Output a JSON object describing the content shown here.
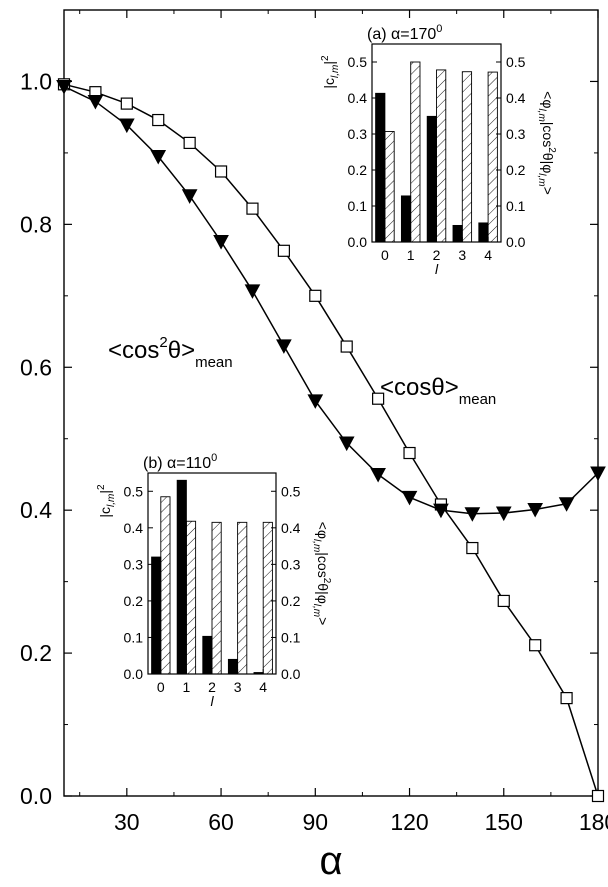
{
  "chart_data": [
    {
      "id": "main",
      "type": "line",
      "xlabel": "α",
      "ylabel": "",
      "xlim": [
        10,
        180
      ],
      "ylim": [
        0.0,
        1.1
      ],
      "x_ticks": [
        30,
        60,
        90,
        120,
        150,
        180
      ],
      "y_ticks": [
        0.0,
        0.2,
        0.4,
        0.6,
        0.8,
        1.0
      ],
      "x_tick_labels": [
        "30",
        "60",
        "90",
        "120",
        "150",
        "180"
      ],
      "y_tick_labels": [
        "0.0",
        "0.2",
        "0.4",
        "0.6",
        "0.8",
        "1.0"
      ],
      "grid": false,
      "annotations": [
        {
          "id": "cos2",
          "base": "<cos",
          "sup": "2",
          "after": "θ>",
          "sub": "mean"
        },
        {
          "id": "cos1",
          "base": "<cosθ>",
          "sup": "",
          "after": "",
          "sub": "mean"
        }
      ],
      "series": [
        {
          "id": "cos",
          "marker": "open-square",
          "x": [
            10,
            20,
            30,
            40,
            50,
            60,
            70,
            80,
            90,
            100,
            110,
            120,
            130,
            140,
            150,
            160,
            170,
            180
          ],
          "y": [
            0.996,
            0.985,
            0.969,
            0.946,
            0.914,
            0.874,
            0.822,
            0.763,
            0.7,
            0.629,
            0.556,
            0.48,
            0.408,
            0.347,
            0.273,
            0.211,
            0.137,
            0.0
          ]
        },
        {
          "id": "cos2",
          "marker": "filled-triangle-down",
          "x": [
            10,
            20,
            30,
            40,
            50,
            60,
            70,
            80,
            90,
            100,
            110,
            120,
            130,
            140,
            150,
            160,
            170,
            180
          ],
          "y": [
            0.993,
            0.972,
            0.939,
            0.895,
            0.84,
            0.776,
            0.707,
            0.63,
            0.553,
            0.494,
            0.45,
            0.418,
            0.4,
            0.395,
            0.396,
            0.401,
            0.409,
            0.452
          ]
        }
      ]
    },
    {
      "id": "inset-a",
      "type": "bar",
      "title": {
        "prefix": "(a) α=170",
        "sup": "0"
      },
      "categories": [
        "0",
        "1",
        "2",
        "3",
        "4"
      ],
      "xlabel": "l",
      "ylabel": {
        "base": "|c",
        "sub": "l,m",
        "close": "|",
        "sup": "2"
      },
      "ylabel_right": "<φ_{l,m}|cos^{2}θ|φ_{l,m}>",
      "ylim": [
        0.0,
        0.55
      ],
      "y_ticks": [
        0.0,
        0.1,
        0.2,
        0.3,
        0.4,
        0.5
      ],
      "y_tick_labels": [
        "0.0",
        "0.1",
        "0.2",
        "0.3",
        "0.4",
        "0.5"
      ],
      "series": [
        {
          "id": "c2",
          "fill": "solid",
          "values": [
            0.413,
            0.128,
            0.349,
            0.046,
            0.053
          ]
        },
        {
          "id": "expect",
          "fill": "hatched",
          "values": [
            0.307,
            0.5,
            0.478,
            0.473,
            0.472
          ]
        }
      ]
    },
    {
      "id": "inset-b",
      "type": "bar",
      "title": {
        "prefix": "(b) α=110",
        "sup": "0"
      },
      "categories": [
        "0",
        "1",
        "2",
        "3",
        "4"
      ],
      "xlabel": "l",
      "ylabel": {
        "base": "|c",
        "sub": "l,m",
        "close": "|",
        "sup": "2"
      },
      "ylabel_right": "<φ_{l,m}|cos^{2}θ|φ_{l,m}>",
      "ylim": [
        0.0,
        0.55
      ],
      "y_ticks": [
        0.0,
        0.1,
        0.2,
        0.3,
        0.4,
        0.5
      ],
      "y_tick_labels": [
        "0.0",
        "0.1",
        "0.2",
        "0.3",
        "0.4",
        "0.5"
      ],
      "series": [
        {
          "id": "c2",
          "fill": "solid",
          "values": [
            0.32,
            0.53,
            0.103,
            0.04,
            0.004
          ]
        },
        {
          "id": "expect",
          "fill": "hatched",
          "values": [
            0.485,
            0.418,
            0.415,
            0.415,
            0.415
          ]
        }
      ]
    }
  ]
}
